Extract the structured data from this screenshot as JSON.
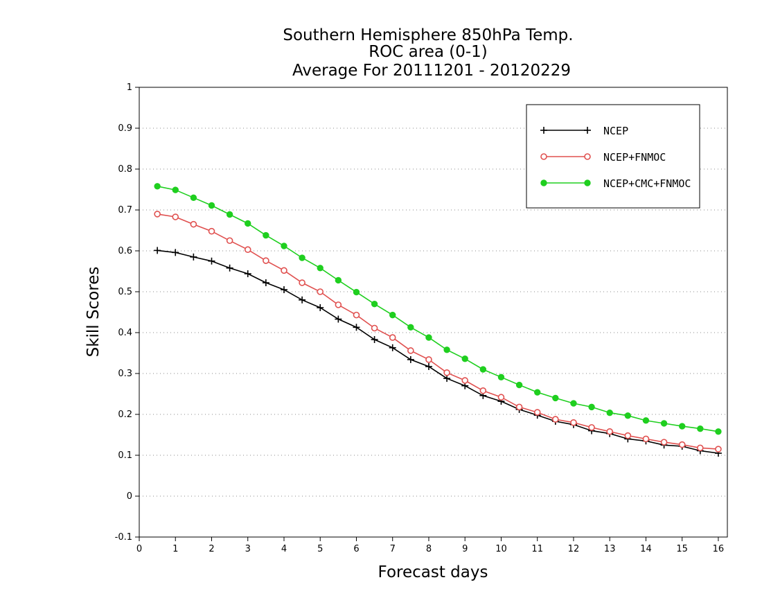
{
  "chart_data": {
    "type": "line",
    "title_lines": [
      "Southern Hemisphere 850hPa Temp.",
      "ROC area (0-1)",
      "Average For 20111201 - 20120229"
    ],
    "xlabel": "Forecast days",
    "ylabel": "Skill Scores",
    "xlim": [
      0,
      16.25
    ],
    "ylim": [
      -0.1,
      1.0
    ],
    "xticks": [
      0,
      1,
      2,
      3,
      4,
      5,
      6,
      7,
      8,
      9,
      10,
      11,
      12,
      13,
      14,
      15,
      16
    ],
    "yticks": [
      -0.1,
      0,
      0.1,
      0.2,
      0.3,
      0.4,
      0.5,
      0.6,
      0.7,
      0.8,
      0.9,
      1
    ],
    "ytick_labels": [
      "-0.1",
      "0",
      "0.1",
      "0.2",
      "0.3",
      "0.4",
      "0.5",
      "0.6",
      "0.7",
      "0.8",
      "0.9",
      "1"
    ],
    "grid": "horizontal dotted",
    "legend_position": "top-right",
    "x": [
      0.5,
      1,
      1.5,
      2,
      2.5,
      3,
      3.5,
      4,
      4.5,
      5,
      5.5,
      6,
      6.5,
      7,
      7.5,
      8,
      8.5,
      9,
      9.5,
      10,
      10.5,
      11,
      11.5,
      12,
      12.5,
      13,
      13.5,
      14,
      14.5,
      15,
      15.5,
      16
    ],
    "series": [
      {
        "name": "NCEP",
        "color": "#000000",
        "marker": "plus",
        "values": [
          0.601,
          0.596,
          0.585,
          0.575,
          0.558,
          0.544,
          0.522,
          0.505,
          0.48,
          0.461,
          0.433,
          0.413,
          0.383,
          0.363,
          0.334,
          0.317,
          0.288,
          0.27,
          0.246,
          0.232,
          0.212,
          0.198,
          0.183,
          0.175,
          0.16,
          0.153,
          0.14,
          0.135,
          0.125,
          0.122,
          0.111,
          0.105
        ]
      },
      {
        "name": "NCEP+FNMOC",
        "color": "#e0504f",
        "marker": "open-circle",
        "values": [
          0.69,
          0.683,
          0.665,
          0.648,
          0.625,
          0.603,
          0.576,
          0.552,
          0.522,
          0.5,
          0.468,
          0.443,
          0.411,
          0.388,
          0.356,
          0.334,
          0.302,
          0.283,
          0.258,
          0.242,
          0.218,
          0.205,
          0.188,
          0.18,
          0.168,
          0.158,
          0.148,
          0.14,
          0.132,
          0.126,
          0.118,
          0.115
        ]
      },
      {
        "name": "NCEP+CMC+FNMOC",
        "color": "#1fcf1f",
        "marker": "filled-circle",
        "values": [
          0.758,
          0.749,
          0.73,
          0.711,
          0.689,
          0.667,
          0.638,
          0.612,
          0.583,
          0.558,
          0.528,
          0.499,
          0.47,
          0.443,
          0.413,
          0.388,
          0.358,
          0.336,
          0.31,
          0.291,
          0.272,
          0.254,
          0.24,
          0.227,
          0.218,
          0.204,
          0.197,
          0.185,
          0.178,
          0.171,
          0.165,
          0.158
        ]
      }
    ]
  }
}
